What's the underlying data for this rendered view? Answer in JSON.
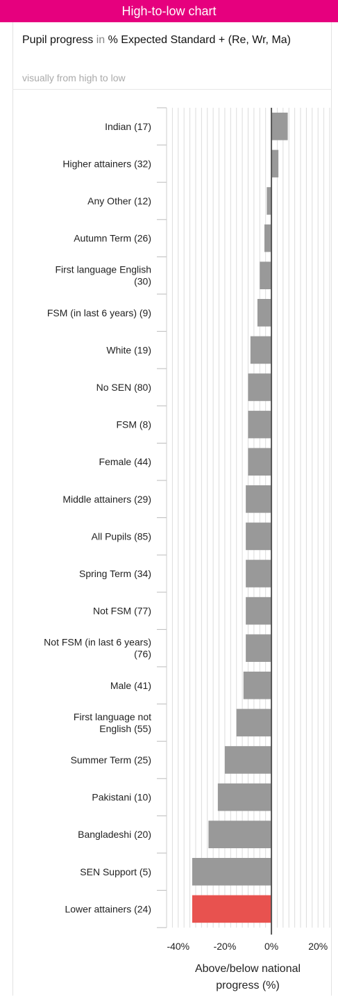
{
  "header": {
    "title": "High-to-low chart"
  },
  "title": {
    "part1": "Pupil progress",
    "part2": " in ",
    "part3": "% Expected Standard + (Re, Wr, Ma)"
  },
  "subtitle": "visually from high to low",
  "colors": {
    "header": "#e6007e",
    "bar": "#999999",
    "highlight": "#e8524f"
  },
  "chart_data": {
    "type": "bar",
    "orientation": "horizontal",
    "categories": [
      [
        "Indian (17)"
      ],
      [
        "Higher attainers (32)"
      ],
      [
        "Any Other (12)"
      ],
      [
        "Autumn Term (26)"
      ],
      [
        "First language English",
        "(30)"
      ],
      [
        "FSM (in last 6 years) (9)"
      ],
      [
        "White (19)"
      ],
      [
        "No SEN (80)"
      ],
      [
        "FSM (8)"
      ],
      [
        "Female (44)"
      ],
      [
        "Middle attainers (29)"
      ],
      [
        "All Pupils (85)"
      ],
      [
        "Spring Term (34)"
      ],
      [
        "Not FSM (77)"
      ],
      [
        "Not FSM (in last 6 years)",
        "(76)"
      ],
      [
        "Male (41)"
      ],
      [
        "First language not",
        "English (55)"
      ],
      [
        "Summer Term (25)"
      ],
      [
        "Pakistani (10)"
      ],
      [
        "Bangladeshi (20)"
      ],
      [
        "SEN Support (5)"
      ],
      [
        "Lower attainers (24)"
      ]
    ],
    "values": [
      7,
      3,
      -2,
      -3,
      -5,
      -6,
      -9,
      -10,
      -10,
      -10,
      -11,
      -11,
      -11,
      -11,
      -11,
      -12,
      -15,
      -20,
      -23,
      -27,
      -34,
      -34
    ],
    "highlight_index": 21,
    "xlim": [
      -45,
      25
    ],
    "xticks": [
      "-40%",
      "-20%",
      "0%",
      "20%"
    ],
    "xtick_values": [
      -40,
      -20,
      0,
      20
    ],
    "xlabel": [
      "Above/below national",
      "progress (%)"
    ]
  }
}
